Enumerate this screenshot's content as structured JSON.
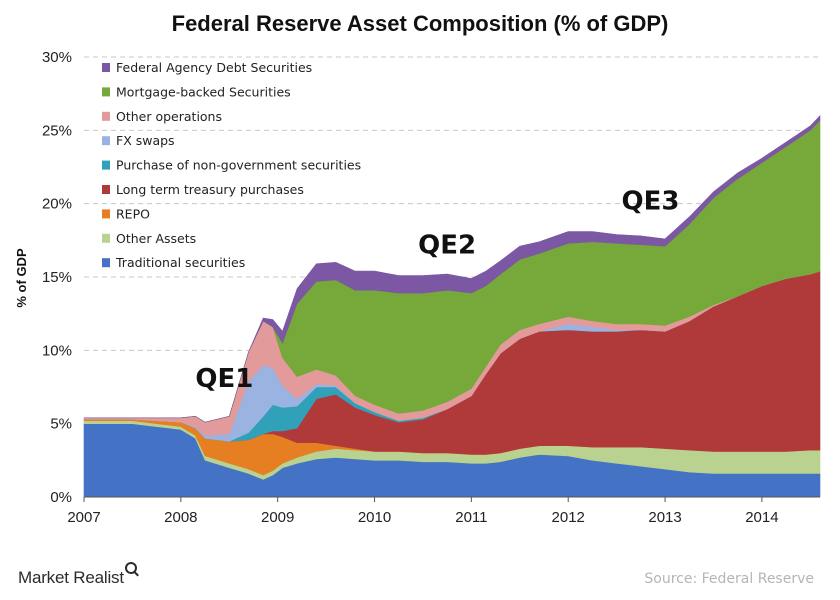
{
  "brand": {
    "name": "Market Realist"
  },
  "source_note": "Source: Federal Reserve",
  "chart_data": {
    "type": "area",
    "stacked": true,
    "title": "Federal Reserve Asset Composition (% of GDP)",
    "xlabel": "",
    "ylabel": "% of GDP",
    "x_tick_labels": [
      "2007",
      "2008",
      "2009",
      "2010",
      "2011",
      "2012",
      "2013",
      "2014"
    ],
    "y_tick_labels": [
      "0%",
      "5%",
      "10%",
      "15%",
      "20%",
      "25%",
      "30%"
    ],
    "xlim": [
      2007.0,
      2014.6
    ],
    "ylim": [
      0,
      30
    ],
    "y_unit": "%",
    "grid": "horizontal dashed",
    "legend_position": "top-left",
    "annotations": [
      {
        "text": "QE1",
        "x": 2008.45,
        "y": 7.5
      },
      {
        "text": "QE2",
        "x": 2010.75,
        "y": 16.6
      },
      {
        "text": "QE3",
        "x": 2012.85,
        "y": 19.6
      }
    ],
    "x": [
      2007.0,
      2007.5,
      2008.0,
      2008.15,
      2008.25,
      2008.5,
      2008.7,
      2008.85,
      2008.95,
      2009.05,
      2009.2,
      2009.4,
      2009.6,
      2009.8,
      2010.0,
      2010.25,
      2010.5,
      2010.75,
      2011.0,
      2011.15,
      2011.3,
      2011.5,
      2011.7,
      2012.0,
      2012.25,
      2012.5,
      2012.75,
      2013.0,
      2013.25,
      2013.5,
      2013.75,
      2014.0,
      2014.25,
      2014.5,
      2014.6
    ],
    "series": [
      {
        "name": "Traditional securities",
        "color": "#4472c4",
        "values": [
          5.0,
          5.0,
          4.6,
          4.0,
          2.5,
          2.0,
          1.6,
          1.2,
          1.5,
          2.0,
          2.3,
          2.6,
          2.7,
          2.6,
          2.5,
          2.5,
          2.4,
          2.4,
          2.3,
          2.3,
          2.4,
          2.7,
          2.9,
          2.8,
          2.5,
          2.3,
          2.1,
          1.9,
          1.7,
          1.6,
          1.6,
          1.6,
          1.6,
          1.6,
          1.6
        ]
      },
      {
        "name": "Other Assets",
        "color": "#b9d290",
        "values": [
          0.2,
          0.2,
          0.2,
          0.2,
          0.3,
          0.3,
          0.3,
          0.3,
          0.3,
          0.3,
          0.4,
          0.5,
          0.6,
          0.6,
          0.6,
          0.6,
          0.6,
          0.6,
          0.6,
          0.6,
          0.6,
          0.6,
          0.6,
          0.7,
          0.9,
          1.1,
          1.3,
          1.4,
          1.5,
          1.5,
          1.5,
          1.5,
          1.5,
          1.6,
          1.6
        ]
      },
      {
        "name": "REPO",
        "color": "#e67e22",
        "values": [
          0.1,
          0.1,
          0.3,
          0.5,
          1.2,
          1.5,
          2.0,
          2.8,
          2.5,
          1.8,
          1.0,
          0.6,
          0.2,
          0.1,
          0.0,
          0.0,
          0.0,
          0.0,
          0.0,
          0.0,
          0.0,
          0.0,
          0.0,
          0.0,
          0.0,
          0.0,
          0.0,
          0.0,
          0.0,
          0.0,
          0.0,
          0.0,
          0.0,
          0.0,
          0.0
        ]
      },
      {
        "name": "Long term treasury purchases",
        "color": "#b03a3a",
        "values": [
          0.0,
          0.0,
          0.0,
          0.0,
          0.0,
          0.0,
          0.0,
          0.0,
          0.2,
          0.4,
          1.0,
          3.0,
          3.5,
          2.8,
          2.5,
          2.0,
          2.3,
          3.0,
          4.0,
          5.5,
          6.8,
          7.5,
          7.8,
          7.9,
          7.9,
          7.9,
          8.0,
          8.0,
          8.8,
          9.9,
          10.6,
          11.3,
          11.8,
          12.0,
          12.2
        ]
      },
      {
        "name": "Purchase of non-government securities",
        "color": "#31a0b9",
        "values": [
          0.0,
          0.0,
          0.0,
          0.0,
          0.0,
          0.0,
          0.5,
          1.2,
          1.8,
          1.6,
          1.5,
          0.8,
          0.5,
          0.3,
          0.2,
          0.1,
          0.1,
          0.0,
          0.0,
          0.0,
          0.0,
          0.0,
          0.0,
          0.0,
          0.0,
          0.0,
          0.0,
          0.0,
          0.0,
          0.0,
          0.0,
          0.0,
          0.0,
          0.0,
          0.0
        ]
      },
      {
        "name": "FX swaps",
        "color": "#9ab3e0",
        "values": [
          0.0,
          0.0,
          0.0,
          0.1,
          0.2,
          0.5,
          3.5,
          3.5,
          2.5,
          1.5,
          0.5,
          0.2,
          0.1,
          0.0,
          0.0,
          0.0,
          0.0,
          0.0,
          0.0,
          0.0,
          0.0,
          0.0,
          0.0,
          0.4,
          0.3,
          0.1,
          0.0,
          0.0,
          0.0,
          0.0,
          0.0,
          0.0,
          0.0,
          0.0,
          0.0
        ]
      },
      {
        "name": "Other operations",
        "color": "#e39a9a",
        "values": [
          0.1,
          0.1,
          0.3,
          0.7,
          0.9,
          1.2,
          2.0,
          3.0,
          2.8,
          1.9,
          1.5,
          1.0,
          0.7,
          0.5,
          0.5,
          0.5,
          0.5,
          0.5,
          0.5,
          0.5,
          0.6,
          0.6,
          0.5,
          0.5,
          0.4,
          0.4,
          0.4,
          0.4,
          0.3,
          0.1,
          0.0,
          0.0,
          0.0,
          0.0,
          0.0
        ]
      },
      {
        "name": "Mortgage-backed Securities",
        "color": "#77a83a",
        "values": [
          0.0,
          0.0,
          0.0,
          0.0,
          0.0,
          0.0,
          0.0,
          0.0,
          0.0,
          1.0,
          5.0,
          6.0,
          6.5,
          7.2,
          7.8,
          8.2,
          8.0,
          7.6,
          6.5,
          5.5,
          4.8,
          4.8,
          4.8,
          5.0,
          5.4,
          5.5,
          5.4,
          5.4,
          6.3,
          7.3,
          8.0,
          8.4,
          9.0,
          9.8,
          10.3
        ]
      },
      {
        "name": "Federal Agency Debt Securities",
        "color": "#7b57a4",
        "values": [
          0.0,
          0.0,
          0.0,
          0.0,
          0.0,
          0.0,
          0.0,
          0.2,
          0.5,
          0.8,
          1.0,
          1.2,
          1.2,
          1.3,
          1.3,
          1.2,
          1.2,
          1.1,
          1.0,
          1.0,
          0.9,
          0.9,
          0.8,
          0.8,
          0.7,
          0.6,
          0.6,
          0.5,
          0.5,
          0.4,
          0.4,
          0.3,
          0.3,
          0.3,
          0.3
        ]
      }
    ]
  }
}
